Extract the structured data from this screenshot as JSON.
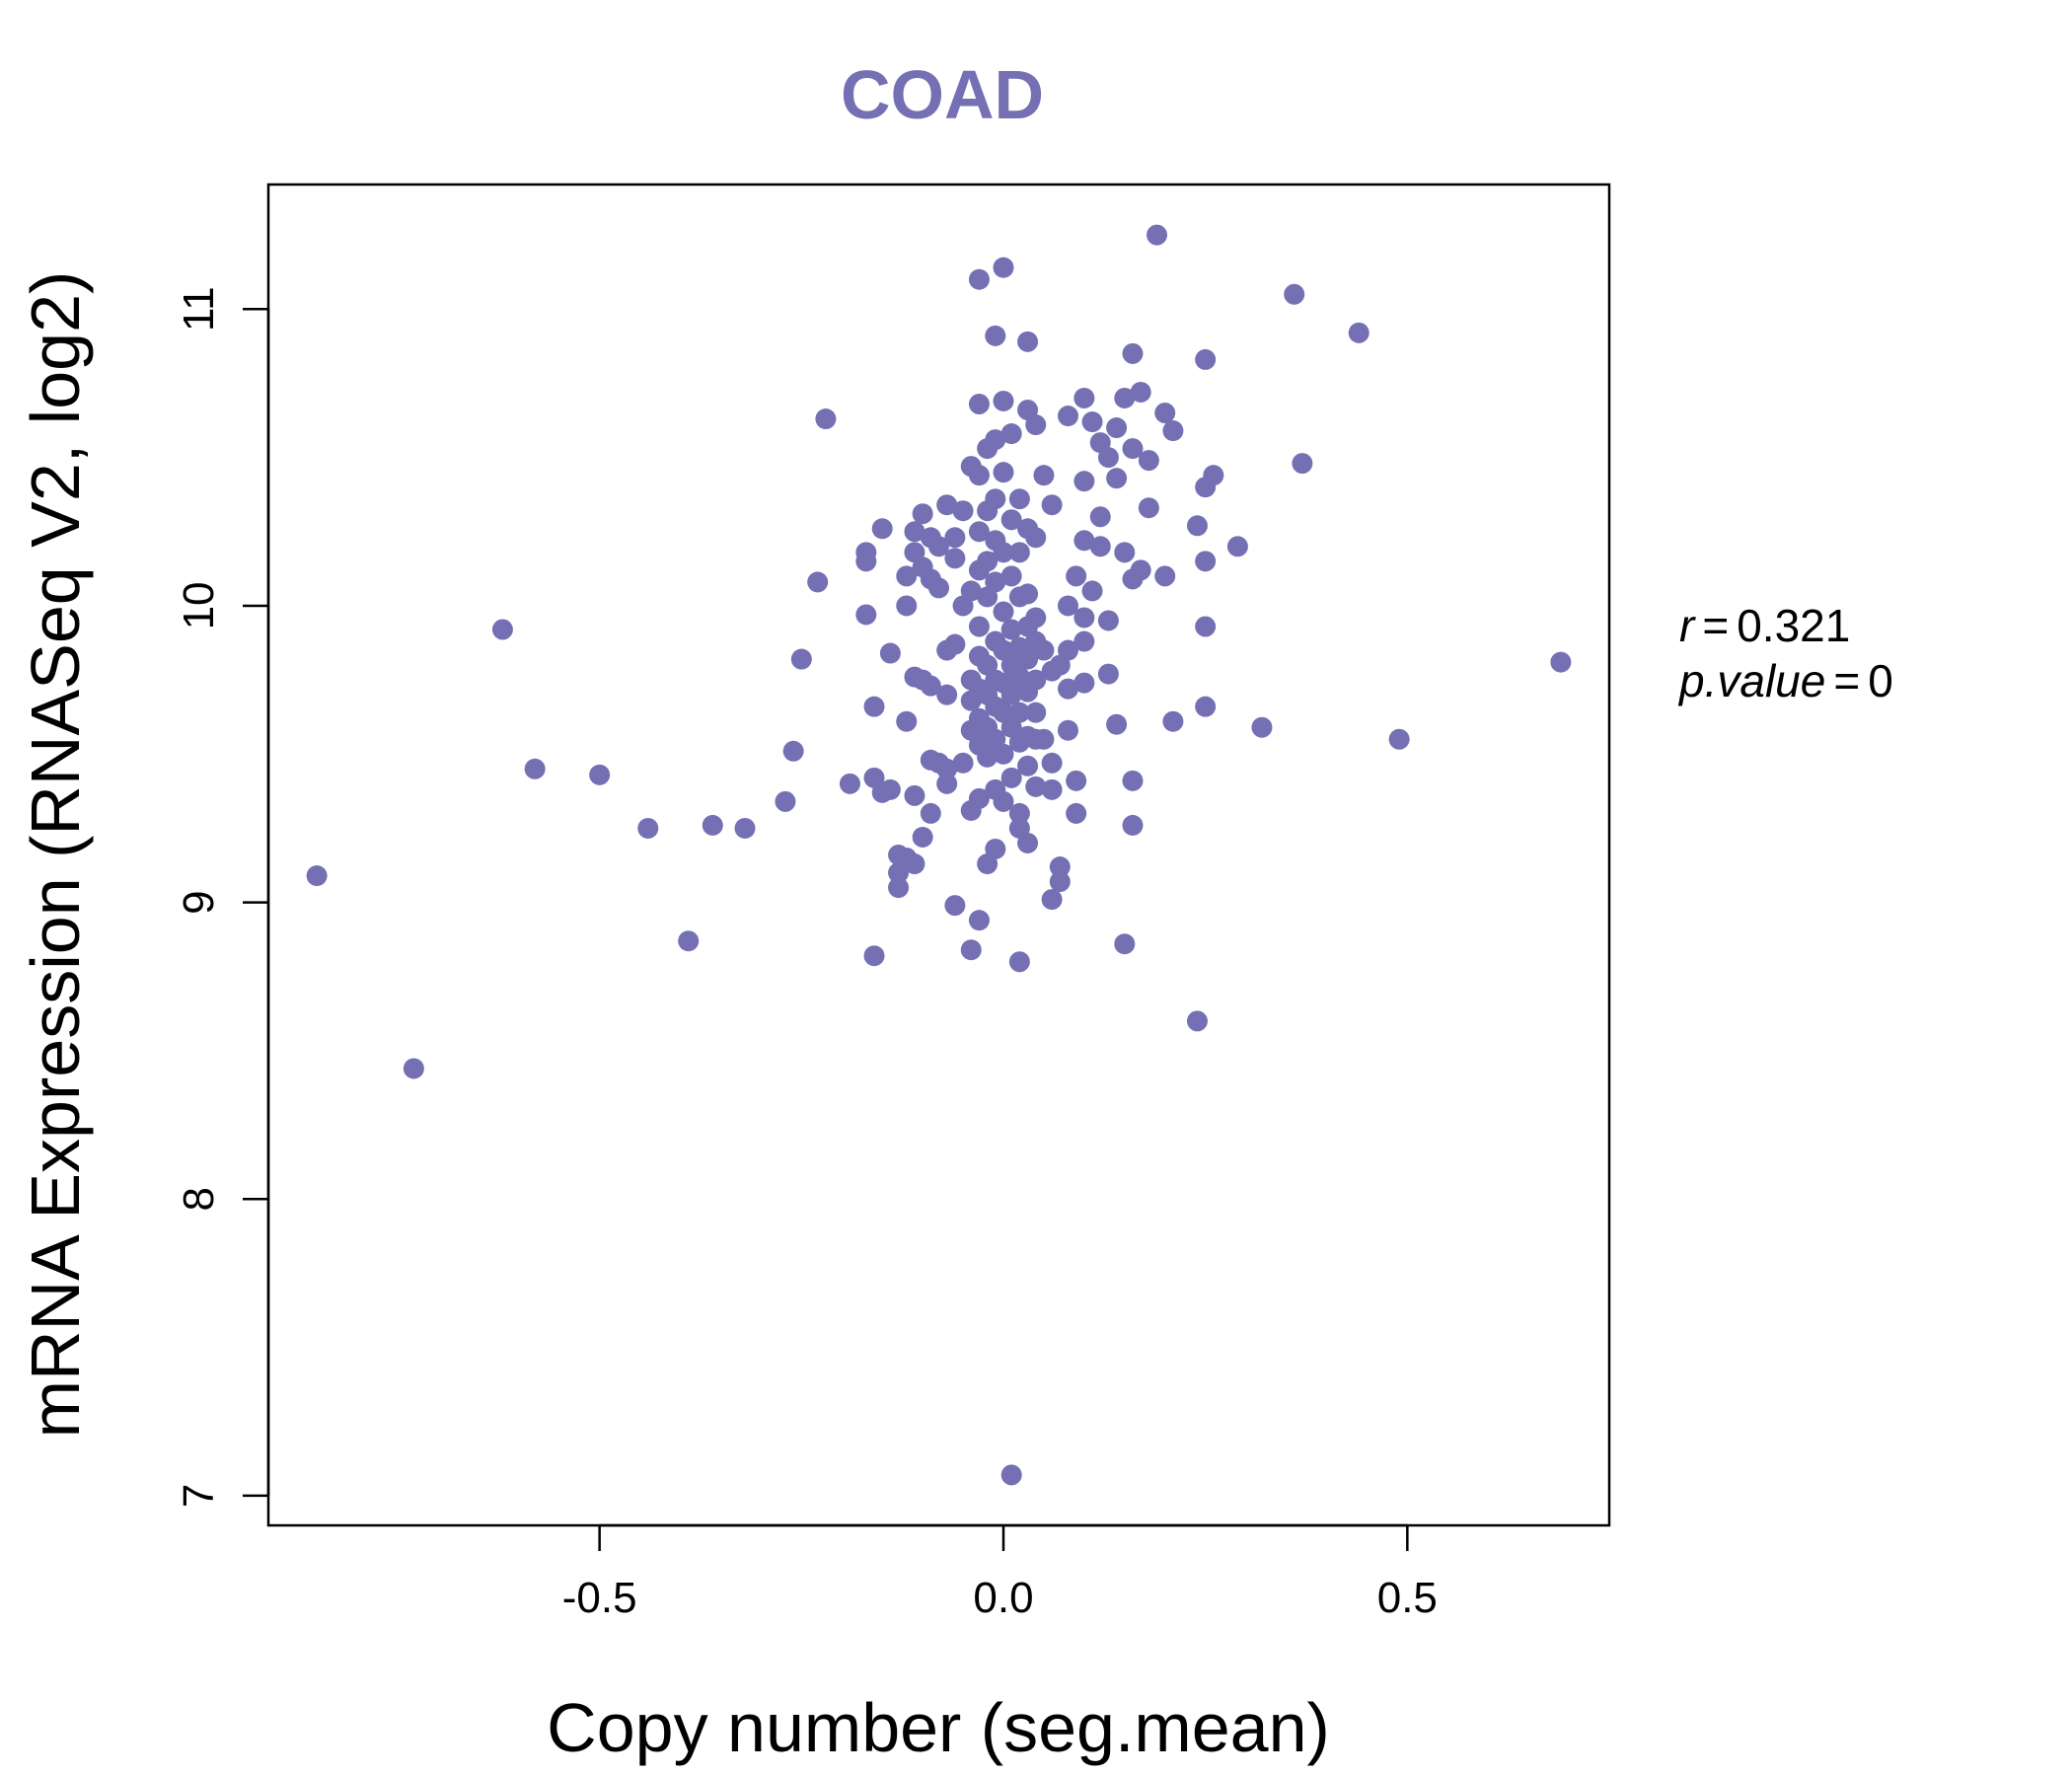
{
  "colors": {
    "point": "#7570B3",
    "title": "#7570B3",
    "axis": "#000000"
  },
  "chart_data": {
    "type": "scatter",
    "title": "COAD",
    "xlabel": "Copy number (seg.mean)",
    "ylabel": "mRNA Expression (RNASeq V2, log2)",
    "xlim": [
      -0.91,
      0.75
    ],
    "ylim": [
      6.9,
      11.42
    ],
    "xticks": [
      -0.5,
      0.0,
      0.5
    ],
    "xtick_labels": [
      "-0.5",
      "0.0",
      "0.5"
    ],
    "yticks": [
      7,
      8,
      9,
      10,
      11
    ],
    "ytick_labels": [
      "7",
      "8",
      "9",
      "10",
      "11"
    ],
    "grid": false,
    "stats": {
      "r_label": "r",
      "r_value": "0.321",
      "p_label": "p.value",
      "p_value": "0"
    },
    "points": [
      [
        -0.85,
        9.09
      ],
      [
        -0.73,
        8.44
      ],
      [
        -0.62,
        9.92
      ],
      [
        -0.58,
        9.45
      ],
      [
        -0.5,
        9.43
      ],
      [
        -0.44,
        9.25
      ],
      [
        -0.39,
        8.87
      ],
      [
        -0.36,
        9.26
      ],
      [
        -0.32,
        9.25
      ],
      [
        -0.27,
        9.34
      ],
      [
        -0.26,
        9.51
      ],
      [
        -0.25,
        9.82
      ],
      [
        -0.23,
        10.08
      ],
      [
        -0.22,
        10.63
      ],
      [
        -0.19,
        9.4
      ],
      [
        -0.17,
        10.18
      ],
      [
        -0.17,
        10.15
      ],
      [
        -0.17,
        9.97
      ],
      [
        -0.16,
        9.42
      ],
      [
        -0.16,
        9.66
      ],
      [
        -0.16,
        8.82
      ],
      [
        -0.15,
        10.26
      ],
      [
        -0.15,
        9.37
      ],
      [
        -0.14,
        9.84
      ],
      [
        -0.14,
        9.38
      ],
      [
        -0.13,
        9.16
      ],
      [
        -0.13,
        9.1
      ],
      [
        -0.13,
        9.05
      ],
      [
        -0.12,
        10.0
      ],
      [
        -0.12,
        10.1
      ],
      [
        -0.12,
        9.61
      ],
      [
        -0.12,
        9.15
      ],
      [
        -0.11,
        10.18
      ],
      [
        -0.11,
        10.25
      ],
      [
        -0.11,
        9.76
      ],
      [
        -0.11,
        9.36
      ],
      [
        -0.11,
        9.13
      ],
      [
        -0.1,
        10.31
      ],
      [
        -0.1,
        10.13
      ],
      [
        -0.1,
        9.75
      ],
      [
        -0.1,
        9.22
      ],
      [
        -0.09,
        10.23
      ],
      [
        -0.09,
        10.09
      ],
      [
        -0.09,
        9.73
      ],
      [
        -0.09,
        9.3
      ],
      [
        -0.09,
        9.48
      ],
      [
        -0.08,
        10.2
      ],
      [
        -0.08,
        10.06
      ],
      [
        -0.08,
        9.47
      ],
      [
        -0.07,
        10.34
      ],
      [
        -0.07,
        9.85
      ],
      [
        -0.07,
        9.7
      ],
      [
        -0.07,
        9.45
      ],
      [
        -0.07,
        9.4
      ],
      [
        -0.06,
        10.23
      ],
      [
        -0.06,
        10.16
      ],
      [
        -0.06,
        9.87
      ],
      [
        -0.06,
        8.99
      ],
      [
        -0.05,
        10.32
      ],
      [
        -0.05,
        10.0
      ],
      [
        -0.05,
        9.47
      ],
      [
        -0.04,
        10.47
      ],
      [
        -0.04,
        10.05
      ],
      [
        -0.04,
        9.75
      ],
      [
        -0.04,
        9.68
      ],
      [
        -0.04,
        9.58
      ],
      [
        -0.04,
        9.31
      ],
      [
        -0.04,
        8.84
      ],
      [
        -0.03,
        11.1
      ],
      [
        -0.03,
        10.68
      ],
      [
        -0.03,
        10.44
      ],
      [
        -0.03,
        10.25
      ],
      [
        -0.03,
        10.12
      ],
      [
        -0.03,
        9.93
      ],
      [
        -0.03,
        9.83
      ],
      [
        -0.03,
        9.72
      ],
      [
        -0.03,
        9.62
      ],
      [
        -0.03,
        9.53
      ],
      [
        -0.03,
        9.35
      ],
      [
        -0.03,
        8.94
      ],
      [
        -0.02,
        10.53
      ],
      [
        -0.02,
        10.32
      ],
      [
        -0.02,
        10.15
      ],
      [
        -0.02,
        10.03
      ],
      [
        -0.02,
        9.8
      ],
      [
        -0.02,
        9.7
      ],
      [
        -0.02,
        9.59
      ],
      [
        -0.02,
        9.49
      ],
      [
        -0.02,
        9.13
      ],
      [
        -0.01,
        10.91
      ],
      [
        -0.01,
        10.56
      ],
      [
        -0.01,
        10.36
      ],
      [
        -0.01,
        10.22
      ],
      [
        -0.01,
        10.08
      ],
      [
        -0.01,
        9.88
      ],
      [
        -0.01,
        9.75
      ],
      [
        -0.01,
        9.66
      ],
      [
        -0.01,
        9.55
      ],
      [
        -0.01,
        9.38
      ],
      [
        -0.01,
        9.18
      ],
      [
        0.0,
        11.14
      ],
      [
        0.0,
        10.69
      ],
      [
        0.0,
        10.45
      ],
      [
        0.0,
        10.18
      ],
      [
        0.0,
        9.98
      ],
      [
        0.0,
        9.85
      ],
      [
        0.0,
        9.74
      ],
      [
        0.0,
        9.64
      ],
      [
        0.0,
        9.5
      ],
      [
        0.0,
        9.34
      ],
      [
        0.01,
        10.58
      ],
      [
        0.01,
        10.29
      ],
      [
        0.01,
        10.1
      ],
      [
        0.01,
        9.92
      ],
      [
        0.01,
        9.8
      ],
      [
        0.01,
        9.7
      ],
      [
        0.01,
        9.59
      ],
      [
        0.01,
        9.42
      ],
      [
        0.01,
        7.07
      ],
      [
        0.02,
        10.36
      ],
      [
        0.02,
        10.18
      ],
      [
        0.02,
        10.03
      ],
      [
        0.02,
        9.86
      ],
      [
        0.02,
        9.76
      ],
      [
        0.02,
        9.64
      ],
      [
        0.02,
        9.54
      ],
      [
        0.02,
        9.3
      ],
      [
        0.02,
        9.25
      ],
      [
        0.02,
        8.8
      ],
      [
        0.03,
        10.66
      ],
      [
        0.03,
        10.26
      ],
      [
        0.03,
        10.04
      ],
      [
        0.03,
        9.93
      ],
      [
        0.03,
        9.82
      ],
      [
        0.03,
        9.71
      ],
      [
        0.03,
        9.56
      ],
      [
        0.03,
        9.46
      ],
      [
        0.03,
        9.2
      ],
      [
        0.03,
        10.89
      ],
      [
        0.04,
        10.61
      ],
      [
        0.04,
        10.23
      ],
      [
        0.04,
        9.96
      ],
      [
        0.04,
        9.88
      ],
      [
        0.04,
        9.75
      ],
      [
        0.04,
        9.64
      ],
      [
        0.04,
        9.55
      ],
      [
        0.04,
        9.39
      ],
      [
        0.05,
        10.44
      ],
      [
        0.05,
        9.85
      ],
      [
        0.05,
        9.55
      ],
      [
        0.06,
        10.34
      ],
      [
        0.06,
        9.78
      ],
      [
        0.06,
        9.47
      ],
      [
        0.06,
        9.38
      ],
      [
        0.06,
        9.01
      ],
      [
        0.07,
        9.07
      ],
      [
        0.07,
        9.12
      ],
      [
        0.07,
        9.8
      ],
      [
        0.08,
        10.64
      ],
      [
        0.08,
        10.0
      ],
      [
        0.08,
        9.72
      ],
      [
        0.08,
        9.85
      ],
      [
        0.08,
        9.58
      ],
      [
        0.09,
        10.1
      ],
      [
        0.09,
        9.41
      ],
      [
        0.09,
        9.3
      ],
      [
        0.1,
        10.7
      ],
      [
        0.1,
        10.42
      ],
      [
        0.1,
        10.22
      ],
      [
        0.1,
        9.96
      ],
      [
        0.1,
        9.88
      ],
      [
        0.1,
        9.74
      ],
      [
        0.11,
        10.62
      ],
      [
        0.11,
        10.05
      ],
      [
        0.12,
        10.55
      ],
      [
        0.12,
        10.3
      ],
      [
        0.12,
        10.2
      ],
      [
        0.13,
        10.5
      ],
      [
        0.13,
        9.95
      ],
      [
        0.13,
        9.77
      ],
      [
        0.14,
        10.6
      ],
      [
        0.14,
        10.43
      ],
      [
        0.14,
        9.6
      ],
      [
        0.15,
        10.7
      ],
      [
        0.15,
        10.18
      ],
      [
        0.15,
        8.86
      ],
      [
        0.16,
        10.85
      ],
      [
        0.16,
        10.53
      ],
      [
        0.16,
        10.09
      ],
      [
        0.16,
        9.41
      ],
      [
        0.16,
        9.26
      ],
      [
        0.17,
        10.72
      ],
      [
        0.17,
        10.12
      ],
      [
        0.18,
        10.33
      ],
      [
        0.18,
        10.49
      ],
      [
        0.19,
        11.25
      ],
      [
        0.2,
        10.1
      ],
      [
        0.2,
        10.65
      ],
      [
        0.21,
        10.59
      ],
      [
        0.21,
        9.61
      ],
      [
        0.24,
        10.27
      ],
      [
        0.24,
        8.6
      ],
      [
        0.25,
        10.83
      ],
      [
        0.25,
        10.4
      ],
      [
        0.25,
        10.15
      ],
      [
        0.25,
        9.93
      ],
      [
        0.25,
        9.66
      ],
      [
        0.26,
        10.44
      ],
      [
        0.29,
        10.2
      ],
      [
        0.32,
        9.59
      ],
      [
        0.36,
        11.05
      ],
      [
        0.37,
        10.48
      ],
      [
        0.44,
        10.92
      ],
      [
        0.49,
        9.55
      ],
      [
        0.69,
        9.81
      ]
    ]
  }
}
